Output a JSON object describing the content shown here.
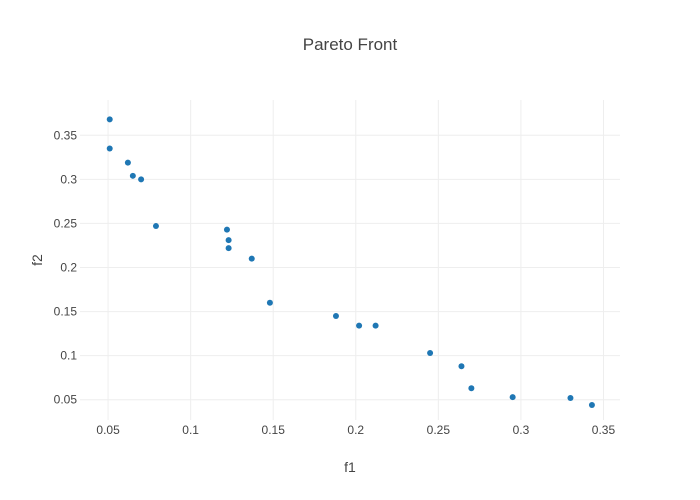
{
  "chart_data": {
    "type": "scatter",
    "title": "Pareto Front",
    "xlabel": "f1",
    "ylabel": "f2",
    "xlim": [
      0.033,
      0.36
    ],
    "ylim": [
      0.027,
      0.39
    ],
    "xticks": [
      0.05,
      0.1,
      0.15,
      0.2,
      0.25,
      0.3,
      0.35
    ],
    "xtick_labels": [
      "0.05",
      "0.1",
      "0.15",
      "0.2",
      "0.25",
      "0.3",
      "0.35"
    ],
    "yticks": [
      0.05,
      0.1,
      0.15,
      0.2,
      0.25,
      0.3,
      0.35
    ],
    "ytick_labels": [
      "0.05",
      "0.1",
      "0.15",
      "0.2",
      "0.25",
      "0.3",
      "0.35"
    ],
    "grid": true,
    "color": "#1f77b4",
    "points": [
      {
        "x": 0.051,
        "y": 0.368
      },
      {
        "x": 0.051,
        "y": 0.335
      },
      {
        "x": 0.062,
        "y": 0.319
      },
      {
        "x": 0.065,
        "y": 0.304
      },
      {
        "x": 0.07,
        "y": 0.3
      },
      {
        "x": 0.079,
        "y": 0.247
      },
      {
        "x": 0.122,
        "y": 0.243
      },
      {
        "x": 0.123,
        "y": 0.231
      },
      {
        "x": 0.123,
        "y": 0.222
      },
      {
        "x": 0.137,
        "y": 0.21
      },
      {
        "x": 0.148,
        "y": 0.16
      },
      {
        "x": 0.188,
        "y": 0.145
      },
      {
        "x": 0.202,
        "y": 0.134
      },
      {
        "x": 0.212,
        "y": 0.134
      },
      {
        "x": 0.245,
        "y": 0.103
      },
      {
        "x": 0.264,
        "y": 0.088
      },
      {
        "x": 0.27,
        "y": 0.063
      },
      {
        "x": 0.295,
        "y": 0.053
      },
      {
        "x": 0.33,
        "y": 0.052
      },
      {
        "x": 0.343,
        "y": 0.044
      }
    ]
  }
}
